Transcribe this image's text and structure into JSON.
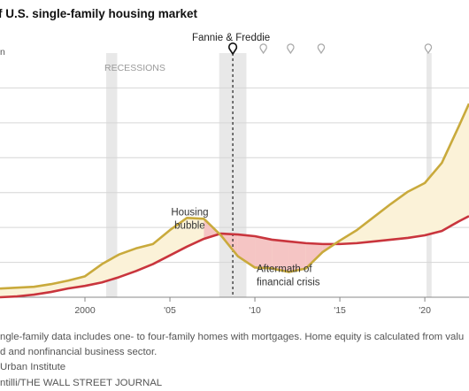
{
  "title": "f U.S. single-family housing market",
  "footnotes": [
    "ngle-family data includes one- to four-family homes with mortgages. Home equity is calculated from valu",
    "d and nonfinancial business sector.",
    "Urban Institute",
    "ntilli/THE WALL STREET JOURNAL"
  ],
  "chart_data": {
    "type": "line",
    "title": "f U.S. single-family housing market",
    "xlabel": "",
    "ylabel": "",
    "xlim": [
      1995.0,
      2022.6
    ],
    "ylim": [
      0,
      280
    ],
    "y_axis_top_label": "n",
    "grid": true,
    "x_ticks": [
      {
        "value": 2000,
        "label": "2000"
      },
      {
        "value": 2005,
        "label": "'05"
      },
      {
        "value": 2010,
        "label": "'10"
      },
      {
        "value": 2015,
        "label": "'15"
      },
      {
        "value": 2020,
        "label": "'20"
      }
    ],
    "y_gridlines": [
      40,
      80,
      120,
      160,
      200,
      240
    ],
    "recessions": [
      {
        "start": 2001.25,
        "end": 2001.9,
        "label": "RECESSIONS"
      },
      {
        "start": 2007.9,
        "end": 2009.5,
        "label": ""
      },
      {
        "start": 2020.1,
        "end": 2020.4,
        "label": ""
      }
    ],
    "event_markers": [
      {
        "x": 2008.7,
        "label": "Fannie & Freddie",
        "highlight": true
      },
      {
        "x": 2010.5,
        "label": "",
        "highlight": false
      },
      {
        "x": 2012.1,
        "label": "",
        "highlight": false
      },
      {
        "x": 2013.9,
        "label": "",
        "highlight": false
      },
      {
        "x": 2020.2,
        "label": "",
        "highlight": false
      }
    ],
    "annotations": [
      {
        "text": "Housing\nbubble",
        "x": 2007.0,
        "y": 94,
        "align": "end"
      },
      {
        "text": "Aftermath of\nfinancial crisis",
        "x": 2010.1,
        "y": 29,
        "align": "start"
      }
    ],
    "series": [
      {
        "name": "",
        "color": "#c9aa3c",
        "x": [
          1995,
          1996,
          1997,
          1998,
          1999,
          2000,
          2001,
          2002,
          2003,
          2004,
          2005,
          2006,
          2007,
          2008,
          2009,
          2010,
          2011,
          2012,
          2013,
          2014,
          2015,
          2016,
          2017,
          2018,
          2019,
          2020,
          2021,
          2022,
          2022.6
        ],
        "values": [
          10,
          11,
          12,
          15,
          19,
          24,
          38,
          49,
          56,
          61,
          77,
          91,
          90,
          71,
          47,
          34,
          33,
          29,
          33,
          52,
          65,
          77,
          92,
          107,
          121,
          131,
          154,
          196,
          222
        ]
      },
      {
        "name": "",
        "color": "#c9353d",
        "x": [
          1995,
          1996,
          1997,
          1998,
          1999,
          2000,
          2001,
          2002,
          2003,
          2004,
          2005,
          2006,
          2007,
          2008,
          2009,
          2010,
          2011,
          2012,
          2013,
          2014,
          2015,
          2016,
          2017,
          2018,
          2019,
          2020,
          2021,
          2022,
          2022.6
        ],
        "values": [
          0,
          1,
          3,
          6,
          10,
          13,
          17,
          23,
          30,
          38,
          48,
          58,
          67,
          73,
          72,
          70,
          66,
          64,
          62,
          61,
          61,
          62,
          64,
          66,
          68,
          71,
          76,
          87,
          93
        ]
      }
    ]
  }
}
